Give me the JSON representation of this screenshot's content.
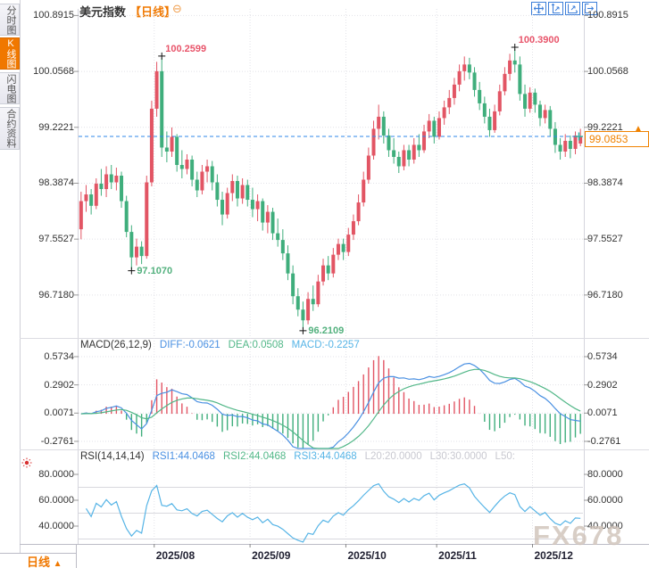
{
  "window": {
    "title": "美元指数",
    "period_tag": "【日线】",
    "collapse_glyph": "⊖"
  },
  "sidebar": {
    "tabs": [
      {
        "label": "分时图",
        "active": false
      },
      {
        "label": "K线图",
        "active": true
      },
      {
        "label": "闪电图",
        "active": false
      },
      {
        "label": "合约资料",
        "active": false
      }
    ]
  },
  "toolbar": {
    "icons": [
      "move-tool",
      "axis-zoom-vertical",
      "axis-zoom-horizontal",
      "export-chart"
    ]
  },
  "colors": {
    "up": "#e25564",
    "down": "#3fae7c",
    "accent": "#f07800",
    "current_line": "#2f87e8",
    "current_marker": "#26b3a7",
    "diff_line": "#4a90e2",
    "dea_line": "#52b788",
    "rsi_line": "#56b4e6",
    "grid": "#e2e2e8",
    "level_line": "#d8d8de"
  },
  "watermark": "FX678",
  "footer": {
    "period_label": "日线",
    "arrow": "▲"
  },
  "chart_data": [
    {
      "type": "candlestick",
      "symbol": "美元指数",
      "period": "日线",
      "ylim": [
        96.17,
        100.99
      ],
      "y_ticks": [
        {
          "v": 100.8915,
          "label": "100.8915"
        },
        {
          "v": 100.0568,
          "label": "100.0568"
        },
        {
          "v": 99.2221,
          "label": "99.2221"
        },
        {
          "v": 98.3874,
          "label": "98.3874"
        },
        {
          "v": 97.5527,
          "label": "97.5527"
        },
        {
          "v": 96.718,
          "label": "96.7180"
        }
      ],
      "x_ticks": [
        {
          "label": "2025/08",
          "index": 15
        },
        {
          "label": "2025/09",
          "index": 34
        },
        {
          "label": "2025/10",
          "index": 53
        },
        {
          "label": "2025/11",
          "index": 71
        },
        {
          "label": "2025/12",
          "index": 90
        }
      ],
      "current_price": {
        "value": 99.0853,
        "label": "99.0853"
      },
      "annotations": [
        {
          "index": 16,
          "text": "100.2599",
          "type": "high",
          "color": "#e8546a"
        },
        {
          "index": 86,
          "text": "100.3900",
          "type": "high",
          "color": "#e8546a"
        },
        {
          "index": 10,
          "text": "97.1070",
          "type": "low",
          "color": "#53b17e"
        },
        {
          "index": 44,
          "text": "96.2109",
          "type": "low",
          "color": "#53b17e"
        }
      ],
      "candles": [
        [
          97.7,
          98.26,
          97.55,
          98.12
        ],
        [
          98.12,
          98.36,
          97.96,
          98.22
        ],
        [
          98.22,
          98.3,
          97.92,
          98.05
        ],
        [
          98.05,
          98.46,
          98.0,
          98.38
        ],
        [
          98.38,
          98.6,
          98.2,
          98.3
        ],
        [
          98.3,
          98.64,
          98.18,
          98.52
        ],
        [
          98.52,
          98.66,
          98.3,
          98.4
        ],
        [
          98.4,
          98.62,
          98.28,
          98.5
        ],
        [
          98.5,
          98.56,
          98.02,
          98.12
        ],
        [
          98.12,
          98.2,
          97.58,
          97.66
        ],
        [
          97.66,
          97.76,
          97.107,
          97.28
        ],
        [
          97.28,
          97.56,
          97.16,
          97.44
        ],
        [
          97.44,
          97.52,
          97.18,
          97.3
        ],
        [
          97.3,
          98.5,
          97.26,
          98.4
        ],
        [
          98.4,
          99.62,
          98.34,
          99.5
        ],
        [
          99.5,
          100.2,
          99.38,
          100.06
        ],
        [
          100.06,
          100.2599,
          98.78,
          98.92
        ],
        [
          98.92,
          99.16,
          98.7,
          98.86
        ],
        [
          98.86,
          99.22,
          98.78,
          99.08
        ],
        [
          99.08,
          99.12,
          98.56,
          98.66
        ],
        [
          98.66,
          98.88,
          98.46,
          98.6
        ],
        [
          98.6,
          98.82,
          98.52,
          98.74
        ],
        [
          98.74,
          98.8,
          98.34,
          98.44
        ],
        [
          98.44,
          98.56,
          98.18,
          98.28
        ],
        [
          98.28,
          98.66,
          98.22,
          98.56
        ],
        [
          98.56,
          98.74,
          98.4,
          98.64
        ],
        [
          98.64,
          98.72,
          98.28,
          98.4
        ],
        [
          98.4,
          98.52,
          98.04,
          98.14
        ],
        [
          98.14,
          98.26,
          97.76,
          97.92
        ],
        [
          97.92,
          98.32,
          97.86,
          98.24
        ],
        [
          98.24,
          98.52,
          98.12,
          98.42
        ],
        [
          98.42,
          98.5,
          98.04,
          98.16
        ],
        [
          98.16,
          98.46,
          98.08,
          98.36
        ],
        [
          98.36,
          98.44,
          98.04,
          98.14
        ],
        [
          98.14,
          98.32,
          97.88,
          98.0
        ],
        [
          98.0,
          98.22,
          97.82,
          98.12
        ],
        [
          98.12,
          98.16,
          97.68,
          97.8
        ],
        [
          97.8,
          98.06,
          97.64,
          97.96
        ],
        [
          97.96,
          98.02,
          97.54,
          97.64
        ],
        [
          97.64,
          97.86,
          97.44,
          97.54
        ],
        [
          97.54,
          97.7,
          97.24,
          97.34
        ],
        [
          97.34,
          97.46,
          96.94,
          97.04
        ],
        [
          97.04,
          97.16,
          96.58,
          96.7
        ],
        [
          96.7,
          96.82,
          96.4,
          96.5
        ],
        [
          96.5,
          96.62,
          96.2109,
          96.34
        ],
        [
          96.34,
          96.76,
          96.28,
          96.66
        ],
        [
          96.66,
          96.86,
          96.48,
          96.58
        ],
        [
          96.58,
          97.02,
          96.54,
          96.92
        ],
        [
          96.92,
          97.26,
          96.86,
          97.16
        ],
        [
          97.16,
          97.3,
          96.94,
          97.04
        ],
        [
          97.04,
          97.42,
          96.98,
          97.32
        ],
        [
          97.32,
          97.56,
          97.24,
          97.48
        ],
        [
          97.48,
          97.56,
          97.24,
          97.36
        ],
        [
          97.36,
          97.72,
          97.3,
          97.62
        ],
        [
          97.62,
          97.92,
          97.54,
          97.82
        ],
        [
          97.82,
          98.22,
          97.76,
          98.1
        ],
        [
          98.1,
          98.56,
          98.04,
          98.44
        ],
        [
          98.44,
          98.92,
          98.38,
          98.8
        ],
        [
          98.8,
          99.32,
          98.74,
          99.2
        ],
        [
          99.2,
          99.56,
          99.04,
          99.38
        ],
        [
          99.38,
          99.46,
          98.98,
          99.1
        ],
        [
          99.1,
          99.2,
          98.78,
          98.88
        ],
        [
          98.88,
          99.06,
          98.68,
          98.78
        ],
        [
          98.78,
          98.86,
          98.54,
          98.64
        ],
        [
          98.64,
          98.96,
          98.58,
          98.88
        ],
        [
          98.88,
          98.96,
          98.64,
          98.74
        ],
        [
          98.74,
          99.06,
          98.68,
          98.96
        ],
        [
          98.96,
          99.12,
          98.78,
          98.88
        ],
        [
          98.88,
          99.26,
          98.84,
          99.16
        ],
        [
          99.16,
          99.42,
          99.06,
          99.32
        ],
        [
          99.32,
          99.38,
          98.98,
          99.08
        ],
        [
          99.08,
          99.46,
          99.04,
          99.36
        ],
        [
          99.36,
          99.62,
          99.26,
          99.52
        ],
        [
          99.52,
          99.78,
          99.42,
          99.66
        ],
        [
          99.66,
          99.96,
          99.56,
          99.86
        ],
        [
          99.86,
          100.16,
          99.76,
          100.06
        ],
        [
          100.06,
          100.28,
          99.92,
          100.16
        ],
        [
          100.16,
          100.26,
          99.94,
          100.04
        ],
        [
          100.04,
          100.12,
          99.68,
          99.78
        ],
        [
          99.78,
          99.9,
          99.48,
          99.58
        ],
        [
          99.58,
          99.68,
          99.28,
          99.38
        ],
        [
          99.38,
          99.5,
          99.08,
          99.18
        ],
        [
          99.18,
          99.56,
          99.14,
          99.46
        ],
        [
          99.46,
          99.86,
          99.4,
          99.76
        ],
        [
          99.76,
          100.12,
          99.7,
          100.02
        ],
        [
          100.02,
          100.32,
          99.92,
          100.22
        ],
        [
          100.22,
          100.39,
          100.04,
          100.16
        ],
        [
          100.16,
          100.28,
          99.62,
          99.72
        ],
        [
          99.72,
          99.86,
          99.38,
          99.5
        ],
        [
          99.5,
          99.82,
          99.44,
          99.74
        ],
        [
          99.74,
          99.8,
          99.44,
          99.56
        ],
        [
          99.56,
          99.62,
          99.24,
          99.36
        ],
        [
          99.36,
          99.56,
          99.28,
          99.48
        ],
        [
          99.48,
          99.54,
          99.08,
          99.2
        ],
        [
          99.2,
          99.3,
          98.84,
          98.96
        ],
        [
          98.96,
          99.06,
          98.74,
          98.86
        ],
        [
          98.86,
          99.12,
          98.78,
          99.02
        ],
        [
          99.02,
          99.1,
          98.76,
          98.9
        ],
        [
          98.9,
          99.16,
          98.82,
          99.1
        ],
        [
          98.98,
          99.2,
          98.94,
          99.0853
        ]
      ]
    },
    {
      "type": "macd",
      "legend": [
        {
          "text": "MACD(26,12,9)",
          "color": "#333333"
        },
        {
          "text": "DIFF:-0.0621",
          "color": "#4a90e2"
        },
        {
          "text": "DEA:0.0508",
          "color": "#52b788"
        },
        {
          "text": "MACD:-0.2257",
          "color": "#56b4e6"
        }
      ],
      "ylim": [
        -0.348,
        0.609
      ],
      "y_ticks": [
        {
          "v": 0.5734,
          "label": "0.5734"
        },
        {
          "v": 0.2902,
          "label": "0.2902"
        },
        {
          "v": 0.0071,
          "label": "0.0071"
        },
        {
          "v": -0.2761,
          "label": "-0.2761"
        }
      ]
    },
    {
      "type": "rsi",
      "legend": [
        {
          "text": "RSI(14,14,14)",
          "color": "#333333"
        },
        {
          "text": "RSI1:44.0468",
          "color": "#4a90e2"
        },
        {
          "text": "RSI2:44.0468",
          "color": "#52b788"
        },
        {
          "text": "RSI3:44.0468",
          "color": "#56b4e6"
        },
        {
          "text": "L20:20.0000",
          "color": "#c8c8d0"
        },
        {
          "text": "L30:30.0000",
          "color": "#c8c8d0"
        },
        {
          "text": "L50:",
          "color": "#c8c8d0"
        }
      ],
      "ylim": [
        27.6,
        86.2
      ],
      "y_ticks": [
        {
          "v": 80,
          "label": "80.0000"
        },
        {
          "v": 60,
          "label": "60.0000"
        },
        {
          "v": 40,
          "label": "40.0000"
        }
      ],
      "levels": [
        70,
        50,
        30
      ]
    }
  ]
}
